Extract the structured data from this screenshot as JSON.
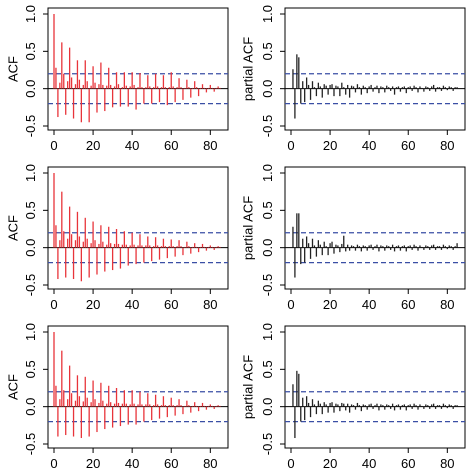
{
  "chart_data": [
    {
      "type": "bar",
      "panel": "row1-left",
      "ylabel": "ACF",
      "xlim": [
        0,
        85
      ],
      "ylim": [
        -0.5,
        1.0
      ],
      "xticks": [
        "0",
        "20",
        "40",
        "60",
        "80"
      ],
      "yticks": [
        "-0.5",
        "0.0",
        "0.5",
        "1.0"
      ],
      "bar_color": "#e8343a",
      "conf_band": [
        0.2,
        -0.2
      ],
      "conf_color": "#3a4fa5",
      "values": [
        1.0,
        0.28,
        -0.38,
        0.08,
        0.62,
        0.2,
        -0.35,
        0.1,
        0.55,
        0.15,
        -0.4,
        0.06,
        0.38,
        0.12,
        -0.45,
        0.05,
        0.38,
        0.1,
        -0.45,
        0.04,
        0.3,
        0.08,
        -0.32,
        0.06,
        0.35,
        0.05,
        -0.3,
        0.04,
        0.28,
        0.05,
        -0.25,
        0.03,
        0.22,
        0.06,
        -0.24,
        0.02,
        0.22,
        0.04,
        -0.24,
        0.03,
        0.22,
        0.05,
        -0.28,
        0.02,
        0.21,
        0.02,
        -0.2,
        0.02,
        0.18,
        0.03,
        -0.2,
        0.02,
        0.2,
        0.03,
        -0.18,
        0.02,
        0.18,
        0.02,
        -0.22,
        0.02,
        0.22,
        0.03,
        -0.18,
        0.02,
        0.14,
        0.02,
        -0.15,
        0.01,
        0.12,
        0.02,
        -0.12,
        0.01,
        0.1,
        0.02,
        -0.1,
        0.01,
        0.06,
        0.01,
        -0.05,
        0.01,
        0.05,
        0.01,
        -0.04,
        0.01,
        0.03,
        0.01
      ]
    },
    {
      "type": "bar",
      "panel": "row1-right",
      "ylabel": "partial ACF",
      "xlim": [
        1,
        85
      ],
      "ylim": [
        -0.5,
        1.0
      ],
      "xticks": [
        "0",
        "20",
        "40",
        "60",
        "80"
      ],
      "yticks": [
        "-0.5",
        "0.0",
        "0.5",
        "1.0"
      ],
      "bar_color": "#222222",
      "conf_band": [
        0.2,
        -0.2
      ],
      "conf_color": "#3a4fa5",
      "values": [
        0.26,
        -0.4,
        0.46,
        0.42,
        -0.2,
        0.1,
        -0.18,
        0.15,
        0.05,
        -0.15,
        0.1,
        0.02,
        -0.1,
        0.08,
        0.03,
        -0.12,
        0.06,
        0.04,
        -0.08,
        0.05,
        0.06,
        -0.1,
        0.04,
        0.03,
        -0.1,
        0.08,
        0.02,
        -0.08,
        0.05,
        -0.12,
        0.04,
        0.03,
        -0.05,
        0.06,
        0.02,
        -0.08,
        0.04,
        0.02,
        -0.06,
        0.03,
        0.05,
        -0.04,
        0.02,
        0.04,
        -0.06,
        0.03,
        0.02,
        -0.05,
        0.04,
        0.02,
        -0.03,
        0.03,
        -0.08,
        0.02,
        0.03,
        -0.04,
        0.02,
        0.03,
        -0.06,
        0.02,
        0.03,
        -0.03,
        0.04,
        0.02,
        -0.05,
        0.03,
        0.01,
        -0.04,
        0.03,
        0.02,
        -0.03,
        0.03,
        0.05,
        -0.04,
        0.02,
        0.02,
        -0.03,
        0.04,
        0.02,
        -0.02,
        0.03,
        0.02,
        -0.03,
        0.02,
        0.02
      ]
    },
    {
      "type": "bar",
      "panel": "row2-left",
      "ylabel": "ACF",
      "xlim": [
        0,
        85
      ],
      "ylim": [
        -0.5,
        1.0
      ],
      "xticks": [
        "0",
        "20",
        "40",
        "60",
        "80"
      ],
      "yticks": [
        "-0.5",
        "0.0",
        "0.5",
        "1.0"
      ],
      "bar_color": "#e8343a",
      "conf_band": [
        0.2,
        -0.2
      ],
      "conf_color": "#3a4fa5",
      "values": [
        1.0,
        0.3,
        -0.42,
        0.1,
        0.75,
        0.22,
        -0.4,
        0.12,
        0.55,
        0.18,
        -0.42,
        0.1,
        0.48,
        0.15,
        -0.45,
        0.08,
        0.4,
        0.12,
        -0.4,
        0.06,
        0.35,
        0.1,
        -0.36,
        0.05,
        0.3,
        0.08,
        -0.32,
        0.04,
        0.28,
        0.06,
        -0.3,
        0.05,
        0.25,
        0.05,
        -0.28,
        0.04,
        0.22,
        0.04,
        -0.24,
        0.03,
        0.2,
        0.04,
        -0.22,
        0.03,
        0.18,
        0.03,
        -0.2,
        0.03,
        0.15,
        0.03,
        -0.18,
        0.02,
        0.14,
        0.03,
        -0.16,
        0.02,
        0.12,
        0.02,
        -0.14,
        0.02,
        0.11,
        0.02,
        -0.12,
        0.02,
        0.1,
        0.02,
        -0.1,
        0.01,
        0.08,
        0.02,
        -0.08,
        0.01,
        0.06,
        0.01,
        -0.06,
        0.01,
        0.05,
        0.01,
        -0.04,
        0.01,
        0.03,
        0.01,
        -0.03,
        0.01,
        0.02,
        0.01
      ]
    },
    {
      "type": "bar",
      "panel": "row2-right",
      "ylabel": "partial ACF",
      "xlim": [
        1,
        85
      ],
      "ylim": [
        -0.5,
        1.0
      ],
      "xticks": [
        "0",
        "20",
        "40",
        "60",
        "80"
      ],
      "yticks": [
        "-0.5",
        "0.0",
        "0.5",
        "1.0"
      ],
      "bar_color": "#222222",
      "conf_band": [
        0.2,
        -0.2
      ],
      "conf_color": "#3a4fa5",
      "values": [
        0.28,
        -0.4,
        0.46,
        0.46,
        -0.22,
        0.12,
        -0.2,
        0.15,
        0.06,
        -0.15,
        0.12,
        0.03,
        -0.12,
        0.1,
        0.04,
        -0.1,
        0.08,
        0.02,
        -0.1,
        0.06,
        0.08,
        -0.08,
        0.04,
        0.03,
        -0.06,
        0.05,
        0.16,
        -0.05,
        0.04,
        -0.04,
        0.03,
        0.02,
        -0.04,
        0.04,
        0.02,
        -0.05,
        0.03,
        0.02,
        -0.04,
        0.03,
        0.04,
        -0.03,
        0.02,
        0.04,
        -0.05,
        0.03,
        0.02,
        -0.04,
        0.03,
        0.02,
        -0.03,
        0.04,
        -0.05,
        0.02,
        0.03,
        -0.04,
        0.02,
        0.03,
        -0.05,
        0.02,
        0.03,
        -0.03,
        0.04,
        0.02,
        -0.04,
        0.03,
        0.01,
        -0.03,
        0.03,
        0.02,
        -0.03,
        0.03,
        0.04,
        -0.03,
        0.02,
        0.02,
        -0.03,
        0.04,
        0.02,
        -0.02,
        0.03,
        0.02,
        -0.03,
        0.02,
        0.06
      ]
    },
    {
      "type": "bar",
      "panel": "row3-left",
      "ylabel": "ACF",
      "xlim": [
        0,
        85
      ],
      "ylim": [
        -0.5,
        1.0
      ],
      "xticks": [
        "0",
        "20",
        "40",
        "60",
        "80"
      ],
      "yticks": [
        "-0.5",
        "0.0",
        "0.5",
        "1.0"
      ],
      "bar_color": "#e8343a",
      "conf_band": [
        0.2,
        -0.2
      ],
      "conf_color": "#3a4fa5",
      "values": [
        1.0,
        0.28,
        -0.4,
        0.1,
        0.75,
        0.22,
        -0.38,
        0.1,
        0.55,
        0.18,
        -0.4,
        0.08,
        0.42,
        0.14,
        -0.42,
        0.07,
        0.4,
        0.12,
        -0.4,
        0.06,
        0.35,
        0.1,
        -0.34,
        0.05,
        0.32,
        0.08,
        -0.3,
        0.04,
        0.28,
        0.06,
        -0.28,
        0.04,
        0.25,
        0.05,
        -0.26,
        0.04,
        0.22,
        0.04,
        -0.24,
        0.03,
        0.22,
        0.04,
        -0.24,
        0.03,
        0.2,
        0.03,
        -0.2,
        0.03,
        0.18,
        0.03,
        -0.18,
        0.02,
        0.16,
        0.03,
        -0.16,
        0.02,
        0.14,
        0.02,
        -0.14,
        0.02,
        0.12,
        0.02,
        -0.12,
        0.02,
        0.1,
        0.02,
        -0.1,
        0.01,
        0.08,
        0.02,
        -0.08,
        0.01,
        0.06,
        0.01,
        -0.06,
        0.01,
        0.05,
        0.01,
        -0.04,
        0.01,
        0.03,
        0.01,
        -0.03,
        0.01,
        0.02,
        0.01
      ]
    },
    {
      "type": "bar",
      "panel": "row3-right",
      "ylabel": "partial ACF",
      "xlim": [
        1,
        85
      ],
      "ylim": [
        -0.5,
        1.0
      ],
      "xticks": [
        "0",
        "20",
        "40",
        "60",
        "80"
      ],
      "yticks": [
        "-0.5",
        "0.0",
        "0.5",
        "1.0"
      ],
      "bar_color": "#222222",
      "conf_band": [
        0.2,
        -0.2
      ],
      "conf_color": "#3a4fa5",
      "values": [
        0.3,
        -0.42,
        0.48,
        0.44,
        -0.2,
        0.12,
        -0.18,
        0.14,
        0.05,
        -0.14,
        0.1,
        0.03,
        -0.1,
        0.08,
        0.04,
        -0.1,
        0.06,
        0.03,
        -0.08,
        0.05,
        0.06,
        -0.08,
        0.04,
        0.03,
        -0.06,
        0.05,
        0.04,
        -0.05,
        0.04,
        -0.08,
        0.03,
        0.02,
        -0.04,
        0.05,
        0.02,
        -0.06,
        0.03,
        0.02,
        -0.04,
        0.03,
        0.04,
        -0.03,
        0.02,
        0.04,
        -0.05,
        0.03,
        0.02,
        -0.04,
        0.03,
        0.02,
        -0.03,
        0.04,
        -0.05,
        0.02,
        0.03,
        -0.04,
        0.02,
        0.03,
        -0.05,
        0.02,
        0.03,
        -0.03,
        0.04,
        0.02,
        -0.04,
        0.03,
        0.01,
        -0.03,
        0.03,
        0.02,
        -0.03,
        0.03,
        0.04,
        -0.03,
        0.02,
        0.02,
        -0.03,
        0.04,
        0.02,
        -0.02,
        0.03,
        0.02,
        -0.03,
        0.02,
        0.02
      ]
    }
  ]
}
